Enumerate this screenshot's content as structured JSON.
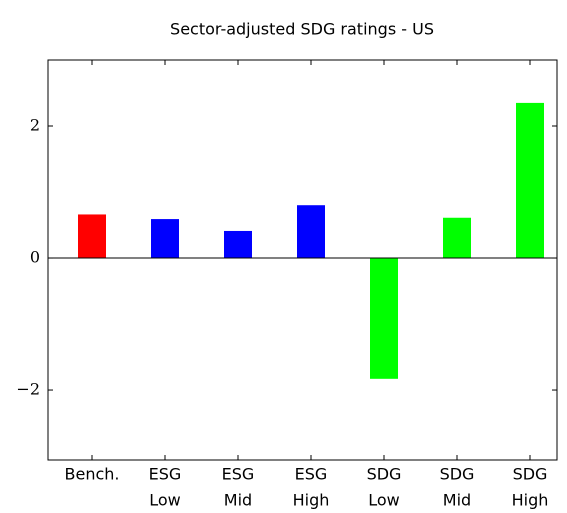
{
  "chart_data": {
    "type": "bar",
    "title": "Sector-adjusted SDG ratings - US",
    "categories": [
      [
        "Bench."
      ],
      [
        "ESG",
        "Low"
      ],
      [
        "ESG",
        "Mid"
      ],
      [
        "ESG",
        "High"
      ],
      [
        "SDG",
        "Low"
      ],
      [
        "SDG",
        "Mid"
      ],
      [
        "SDG",
        "High"
      ]
    ],
    "values": [
      0.66,
      0.59,
      0.41,
      0.8,
      -1.83,
      0.61,
      2.35
    ],
    "colors": [
      "#ff0000",
      "#0000ff",
      "#0000ff",
      "#0000ff",
      "#00ff00",
      "#00ff00",
      "#00ff00"
    ],
    "ylim": [
      -3.06,
      3
    ],
    "yticks": [
      {
        "value": -2,
        "label": "−2"
      },
      0,
      2
    ],
    "grid": false
  }
}
